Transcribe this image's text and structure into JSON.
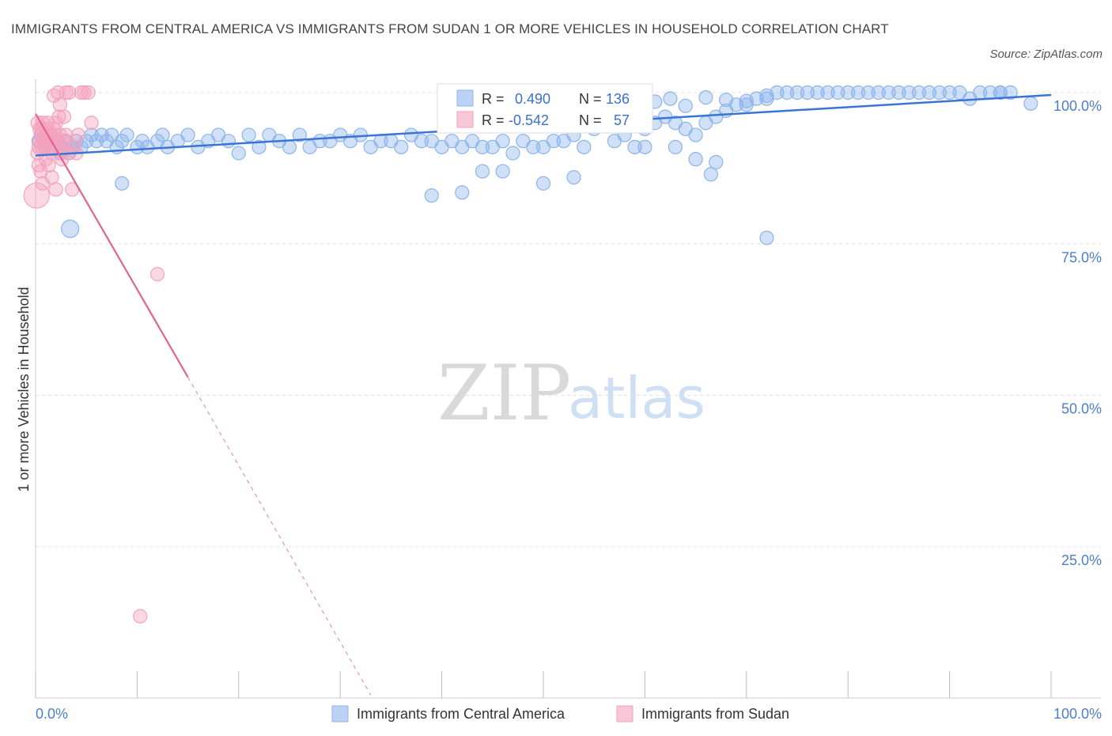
{
  "title": "IMMIGRANTS FROM CENTRAL AMERICA VS IMMIGRANTS FROM SUDAN 1 OR MORE VEHICLES IN HOUSEHOLD CORRELATION CHART",
  "source": "Source: ZipAtlas.com",
  "watermark": {
    "zip": "ZIP",
    "atlas": "atlas"
  },
  "colors": {
    "blue": "#8db4ec",
    "blue_line": "#3a75d6",
    "pink": "#f4a2bd",
    "pink_line": "#e0648f"
  },
  "stats_box": {
    "rows": [
      {
        "r_label": "R =",
        "r_value": "0.490",
        "n_label": "N =",
        "n_value": "136"
      },
      {
        "r_label": "R =",
        "r_value": "-0.542",
        "n_label": "N =",
        "n_value": "57"
      }
    ]
  },
  "chart_data": {
    "type": "scatter",
    "title": "IMMIGRANTS FROM CENTRAL AMERICA VS IMMIGRANTS FROM SUDAN 1 OR MORE VEHICLES IN HOUSEHOLD CORRELATION CHART",
    "xlabel": "",
    "ylabel": "1 or more Vehicles in Household",
    "xlim": [
      0,
      100
    ],
    "ylim": [
      0,
      100
    ],
    "x_tick_labels": [
      "0.0%",
      "100.0%"
    ],
    "y_tick_labels": [
      {
        "value": 100,
        "label": "100.0%"
      },
      {
        "value": 75,
        "label": "75.0%"
      },
      {
        "value": 50,
        "label": "50.0%"
      },
      {
        "value": 25,
        "label": "25.0%"
      }
    ],
    "grid": true,
    "legend_position": "bottom-center",
    "series": [
      {
        "name": "Immigrants from Central America",
        "color": "#8db4ec",
        "trend": {
          "x": [
            0,
            100
          ],
          "y": [
            89.6,
            99.6
          ],
          "style": "solid"
        },
        "points": [
          [
            0.3,
            92
          ],
          [
            0.6,
            93
          ],
          [
            0.9,
            91
          ],
          [
            1.2,
            92
          ],
          [
            1.5,
            93
          ],
          [
            1.8,
            91
          ],
          [
            2.1,
            92
          ],
          [
            2.4,
            90
          ],
          [
            2.7,
            91
          ],
          [
            3.0,
            92
          ],
          [
            3.3,
            90
          ],
          [
            3.6,
            91
          ],
          [
            4.0,
            92
          ],
          [
            4.5,
            91
          ],
          [
            5.0,
            92
          ],
          [
            5.5,
            93
          ],
          [
            6.0,
            92
          ],
          [
            6.5,
            93
          ],
          [
            7.0,
            92
          ],
          [
            7.5,
            93
          ],
          [
            8.0,
            91
          ],
          [
            8.5,
            92
          ],
          [
            9.0,
            93
          ],
          [
            10,
            91
          ],
          [
            10.5,
            92
          ],
          [
            11,
            91
          ],
          [
            12,
            92
          ],
          [
            12.5,
            93
          ],
          [
            13,
            91
          ],
          [
            14,
            92
          ],
          [
            15,
            93
          ],
          [
            16,
            91
          ],
          [
            17,
            92
          ],
          [
            18,
            93
          ],
          [
            19,
            92
          ],
          [
            20,
            90
          ],
          [
            21,
            93
          ],
          [
            22,
            91
          ],
          [
            23,
            93
          ],
          [
            24,
            92
          ],
          [
            25,
            91
          ],
          [
            26,
            93
          ],
          [
            27,
            91
          ],
          [
            28,
            92
          ],
          [
            29,
            92
          ],
          [
            30,
            93
          ],
          [
            31,
            92
          ],
          [
            32,
            93
          ],
          [
            33,
            91
          ],
          [
            34,
            92
          ],
          [
            35,
            92
          ],
          [
            36,
            91
          ],
          [
            37,
            93
          ],
          [
            38,
            92
          ],
          [
            39,
            92
          ],
          [
            40,
            91
          ],
          [
            41,
            92
          ],
          [
            42,
            91
          ],
          [
            43,
            92
          ],
          [
            44,
            91
          ],
          [
            45,
            91
          ],
          [
            46,
            92
          ],
          [
            47,
            90
          ],
          [
            48,
            92
          ],
          [
            49,
            91
          ],
          [
            50,
            91
          ],
          [
            51,
            92
          ],
          [
            52,
            92
          ],
          [
            53,
            93
          ],
          [
            54,
            91
          ],
          [
            55,
            94
          ],
          [
            56,
            95
          ],
          [
            57,
            92
          ],
          [
            58,
            93
          ],
          [
            59,
            91
          ],
          [
            60,
            94
          ],
          [
            61,
            95
          ],
          [
            62,
            96
          ],
          [
            63,
            95
          ],
          [
            64,
            94
          ],
          [
            65,
            93
          ],
          [
            66,
            95
          ],
          [
            67,
            96
          ],
          [
            68,
            97
          ],
          [
            69,
            98
          ],
          [
            70,
            98
          ],
          [
            71,
            99
          ],
          [
            72,
            99
          ],
          [
            73,
            100
          ],
          [
            74,
            100
          ],
          [
            75,
            100
          ],
          [
            76,
            100
          ],
          [
            77,
            100
          ],
          [
            78,
            100
          ],
          [
            79,
            100
          ],
          [
            80,
            100
          ],
          [
            81,
            100
          ],
          [
            82,
            100
          ],
          [
            83,
            100
          ],
          [
            84,
            100
          ],
          [
            85,
            100
          ],
          [
            86,
            100
          ],
          [
            87,
            100
          ],
          [
            88,
            100
          ],
          [
            89,
            100
          ],
          [
            90,
            100
          ],
          [
            91,
            100
          ],
          [
            92,
            99
          ],
          [
            93,
            100
          ],
          [
            94,
            100
          ],
          [
            95,
            100
          ],
          [
            96,
            100
          ],
          [
            55.5,
            97.8
          ],
          [
            57.5,
            96.8
          ],
          [
            59,
            96.5
          ],
          [
            61,
            98.5
          ],
          [
            62.5,
            99
          ],
          [
            64,
            97.8
          ],
          [
            66,
            99.2
          ],
          [
            68,
            98.8
          ],
          [
            70,
            98.6
          ],
          [
            72,
            99.5
          ],
          [
            98,
            98.2
          ],
          [
            95,
            100
          ],
          [
            8.5,
            85
          ],
          [
            3.4,
            77.5
          ],
          [
            39,
            83
          ],
          [
            42,
            83.5
          ],
          [
            44,
            87
          ],
          [
            46,
            87
          ],
          [
            50,
            85
          ],
          [
            53,
            86
          ],
          [
            66.5,
            86.5
          ],
          [
            72,
            76
          ],
          [
            60,
            91
          ],
          [
            63,
            91
          ],
          [
            65,
            89
          ],
          [
            67,
            88.5
          ]
        ]
      },
      {
        "name": "Immigrants from Sudan",
        "color": "#f4a2bd",
        "trend": {
          "x": [
            0,
            15
          ],
          "y": [
            96.5,
            53.0
          ],
          "style": "solid",
          "extension": {
            "x": [
              15,
              33
            ],
            "y": [
              53.0,
              0.5
            ],
            "style": "dashed"
          }
        },
        "points": [
          [
            0.1,
            83
          ],
          [
            0.2,
            90
          ],
          [
            0.3,
            91
          ],
          [
            0.4,
            92
          ],
          [
            0.5,
            93
          ],
          [
            0.6,
            94
          ],
          [
            0.7,
            95
          ],
          [
            0.8,
            92
          ],
          [
            0.9,
            91
          ],
          [
            1.0,
            93
          ],
          [
            1.1,
            94
          ],
          [
            1.2,
            95
          ],
          [
            1.3,
            92
          ],
          [
            1.4,
            91
          ],
          [
            1.5,
            93
          ],
          [
            1.6,
            90
          ],
          [
            1.7,
            92
          ],
          [
            1.8,
            94
          ],
          [
            1.9,
            93
          ],
          [
            2.0,
            95
          ],
          [
            2.1,
            91
          ],
          [
            2.2,
            92
          ],
          [
            2.3,
            96
          ],
          [
            2.4,
            93
          ],
          [
            2.5,
            90
          ],
          [
            2.6,
            89
          ],
          [
            2.7,
            91
          ],
          [
            2.8,
            92
          ],
          [
            3.0,
            93
          ],
          [
            3.2,
            90
          ],
          [
            0.3,
            88
          ],
          [
            0.5,
            87
          ],
          [
            0.7,
            85
          ],
          [
            1.0,
            89
          ],
          [
            1.3,
            88
          ],
          [
            1.6,
            86
          ],
          [
            2.0,
            84
          ],
          [
            3.6,
            84
          ],
          [
            4.0,
            90
          ],
          [
            1.8,
            99.5
          ],
          [
            2.2,
            100
          ],
          [
            3.0,
            100
          ],
          [
            3.3,
            100
          ],
          [
            4.5,
            100
          ],
          [
            4.8,
            100
          ],
          [
            5.2,
            100
          ],
          [
            2.4,
            98
          ],
          [
            2.8,
            96
          ],
          [
            5.5,
            95
          ],
          [
            4.2,
            93
          ],
          [
            3.8,
            91
          ],
          [
            0.2,
            95
          ],
          [
            0.4,
            94
          ],
          [
            0.6,
            91
          ],
          [
            12,
            70
          ],
          [
            10.3,
            13.5
          ]
        ]
      }
    ]
  },
  "legend": [
    {
      "label": "Immigrants from Central America",
      "color": "#8db4ec"
    },
    {
      "label": "Immigrants from Sudan",
      "color": "#f4a2bd"
    }
  ]
}
